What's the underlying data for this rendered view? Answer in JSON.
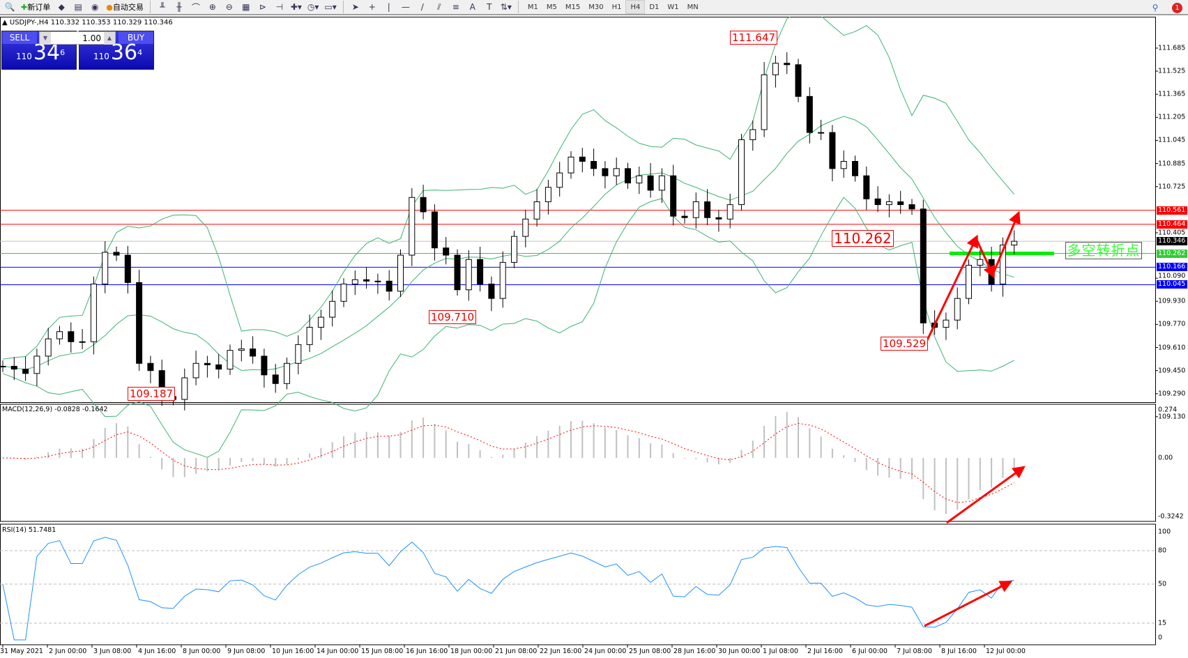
{
  "toolbar": {
    "left_icons": [
      "zoom-icon",
      "new-order-icon",
      "gold-icon",
      "market-watch-icon",
      "signal-icon"
    ],
    "new_order": "新订单",
    "auto_trading": "自动交易",
    "timeframes": [
      "M1",
      "M5",
      "M15",
      "M30",
      "H1",
      "H4",
      "D1",
      "W1",
      "MN"
    ],
    "active_timeframe": "H4",
    "notification_count": "1"
  },
  "chart": {
    "symbol_line": "USDJPY-,H4  110.332 110.353 110.329 110.346",
    "sell": {
      "label": "SELL",
      "prefix": "110",
      "big": "34",
      "sup": "6"
    },
    "buy": {
      "label": "BUY",
      "prefix": "110",
      "big": "36",
      "sup": "4"
    },
    "lot": "1.00",
    "price_axis": [
      "111.685",
      "111.525",
      "111.365",
      "111.205",
      "111.045",
      "110.885",
      "110.725",
      "110.405",
      "110.090",
      "109.930",
      "109.770",
      "109.610",
      "109.450",
      "109.290",
      "109.130"
    ],
    "price_tags": [
      {
        "value": "110.561",
        "color": "#ff0000",
        "line": "red"
      },
      {
        "value": "110.464",
        "color": "#ff0000",
        "line": "red"
      },
      {
        "value": "110.346",
        "color": "#000000",
        "line": "grey"
      },
      {
        "value": "110.262",
        "color": "#33cc33",
        "line": "green"
      },
      {
        "value": "110.166",
        "color": "#0000ff",
        "line": "blue"
      },
      {
        "value": "110.045",
        "color": "#0000ff",
        "line": "blue"
      }
    ],
    "annotations": {
      "high": "111.647",
      "low1": "109.187",
      "low2": "109.710",
      "low3": "109.529",
      "pivot": "110.262",
      "note": "多空转折点"
    },
    "macd": {
      "label": "MACD(12,26,9) -0.0828 -0.1642",
      "axis": [
        "0.274",
        "0.00",
        "-0.3242"
      ]
    },
    "rsi": {
      "label": "RSI(14) 51.7481",
      "axis": [
        "100",
        "80",
        "50",
        "15",
        "0"
      ]
    },
    "time_axis": [
      "31 May 2021",
      "2 Jun 00:00",
      "3 Jun 08:00",
      "4 Jun 16:00",
      "8 Jun 00:00",
      "9 Jun 08:00",
      "10 Jun 16:00",
      "14 Jun 00:00",
      "15 Jun 08:00",
      "16 Jun 16:00",
      "18 Jun 00:00",
      "21 Jun 08:00",
      "22 Jun 16:00",
      "24 Jun 00:00",
      "25 Jun 08:00",
      "28 Jun 16:00",
      "30 Jun 00:00",
      "1 Jul 08:00",
      "2 Jul 16:00",
      "6 Jul 00:00",
      "7 Jul 08:00",
      "8 Jul 16:00",
      "12 Jul 00:00"
    ],
    "colors": {
      "bands": "#3cb371",
      "macd_signal": "#ff0000",
      "macd_hist": "#c0c0c0",
      "rsi": "#1e90ff",
      "arrow": "#ff0000"
    }
  },
  "chart_data": {
    "type": "candlestick",
    "symbol": "USDJPY-",
    "timeframe": "H4",
    "ylim": [
      109.13,
      111.685
    ],
    "closes": [
      109.48,
      109.46,
      109.43,
      109.55,
      109.67,
      109.72,
      109.65,
      109.65,
      110.05,
      110.27,
      110.25,
      110.06,
      109.5,
      109.45,
      109.27,
      109.25,
      109.4,
      109.5,
      109.49,
      109.46,
      109.59,
      109.6,
      109.55,
      109.42,
      109.36,
      109.5,
      109.63,
      109.75,
      109.82,
      109.93,
      110.05,
      110.08,
      110.07,
      110.07,
      110.0,
      110.25,
      110.65,
      110.55,
      110.3,
      110.25,
      110.01,
      110.22,
      110.05,
      109.95,
      110.2,
      110.38,
      110.5,
      110.62,
      110.72,
      110.82,
      110.93,
      110.9,
      110.85,
      110.8,
      110.85,
      110.75,
      110.8,
      110.7,
      110.8,
      110.52,
      110.51,
      110.62,
      110.51,
      110.5,
      110.6,
      111.05,
      111.12,
      111.5,
      111.58,
      111.57,
      111.35,
      111.1,
      111.1,
      110.85,
      110.9,
      110.8,
      110.64,
      110.6,
      110.62,
      110.6,
      110.57,
      109.78,
      109.75,
      109.8,
      109.95,
      110.18,
      110.22,
      110.05,
      110.32,
      110.346
    ]
  }
}
